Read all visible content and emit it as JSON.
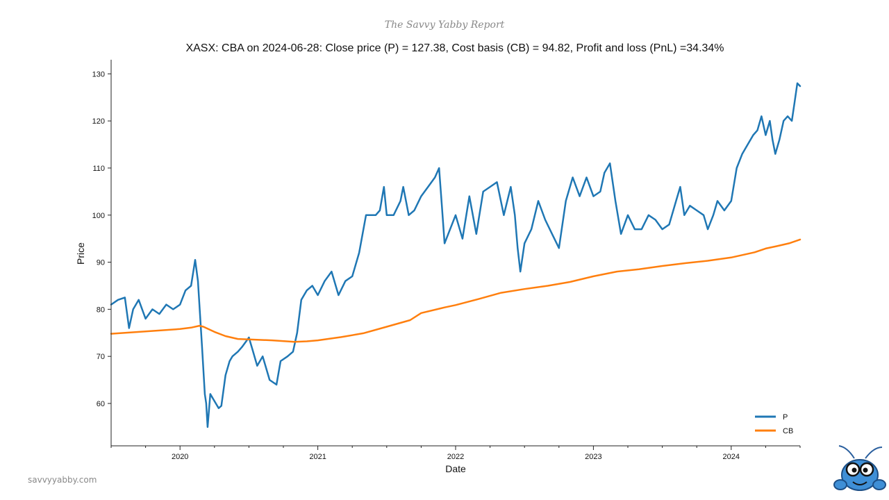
{
  "header": {
    "brand": "The Savvy Yabby Report"
  },
  "footer": {
    "website": "savvyyabby.com"
  },
  "colors": {
    "price": "#1f77b4",
    "cost_basis": "#ff7f0e",
    "mascot": "#3f8fd6"
  },
  "chart_data": {
    "type": "line",
    "title": "XASX: CBA on 2024-06-28: Close price (P) = 127.38, Cost basis (CB) = 94.82, Profit and loss (PnL) =34.34%",
    "xlabel": "Date",
    "ylabel": "Price",
    "xlim": [
      2019.5,
      2024.5
    ],
    "ylim": [
      51,
      133
    ],
    "x_ticks": [
      {
        "value": 2020,
        "label": "2020"
      },
      {
        "value": 2021,
        "label": "2021"
      },
      {
        "value": 2022,
        "label": "2022"
      },
      {
        "value": 2023,
        "label": "2023"
      },
      {
        "value": 2024,
        "label": "2024"
      }
    ],
    "y_ticks": [
      60,
      70,
      80,
      90,
      100,
      110,
      120,
      130
    ],
    "legend_position": "bottom-right",
    "series": [
      {
        "name": "P",
        "x": [
          2019.5,
          2019.55,
          2019.6,
          2019.63,
          2019.66,
          2019.7,
          2019.75,
          2019.8,
          2019.85,
          2019.9,
          2019.95,
          2020.0,
          2020.04,
          2020.08,
          2020.11,
          2020.13,
          2020.16,
          2020.18,
          2020.19,
          2020.2,
          2020.22,
          2020.24,
          2020.26,
          2020.28,
          2020.3,
          2020.33,
          2020.36,
          2020.38,
          2020.42,
          2020.45,
          2020.5,
          2020.53,
          2020.56,
          2020.6,
          2020.65,
          2020.7,
          2020.73,
          2020.78,
          2020.82,
          2020.85,
          2020.88,
          2020.92,
          2020.96,
          2021.0,
          2021.05,
          2021.1,
          2021.13,
          2021.15,
          2021.2,
          2021.25,
          2021.3,
          2021.35,
          2021.38,
          2021.42,
          2021.45,
          2021.48,
          2021.5,
          2021.55,
          2021.6,
          2021.62,
          2021.66,
          2021.7,
          2021.75,
          2021.8,
          2021.85,
          2021.88,
          2021.9,
          2021.92,
          2022.0,
          2022.05,
          2022.1,
          2022.15,
          2022.2,
          2022.25,
          2022.3,
          2022.35,
          2022.4,
          2022.43,
          2022.45,
          2022.47,
          2022.5,
          2022.55,
          2022.6,
          2022.65,
          2022.7,
          2022.75,
          2022.8,
          2022.85,
          2022.9,
          2022.95,
          2023.0,
          2023.05,
          2023.08,
          2023.12,
          2023.16,
          2023.2,
          2023.25,
          2023.3,
          2023.35,
          2023.4,
          2023.45,
          2023.5,
          2023.55,
          2023.6,
          2023.63,
          2023.66,
          2023.7,
          2023.75,
          2023.8,
          2023.83,
          2023.87,
          2023.9,
          2023.95,
          2024.0,
          2024.04,
          2024.08,
          2024.12,
          2024.16,
          2024.19,
          2024.22,
          2024.25,
          2024.28,
          2024.3,
          2024.32,
          2024.35,
          2024.38,
          2024.41,
          2024.44,
          2024.46,
          2024.48,
          2024.5
        ],
        "values": [
          81,
          82,
          82.5,
          76,
          80,
          82,
          78,
          80,
          79,
          81,
          80,
          81,
          84,
          85,
          90.5,
          86,
          72,
          62,
          60,
          55,
          62,
          61,
          60,
          59,
          59.5,
          66,
          69,
          70,
          71,
          72,
          74,
          71,
          68,
          70,
          65,
          64,
          69,
          70,
          71,
          75,
          82,
          84,
          85,
          83,
          86,
          88,
          85,
          83,
          86,
          87,
          92,
          100,
          100,
          100,
          101,
          106,
          100,
          100,
          103,
          106,
          100,
          101,
          104,
          106,
          108,
          110,
          102,
          94,
          100,
          95,
          104,
          96,
          105,
          106,
          107,
          100,
          106,
          100,
          93,
          88,
          94,
          97,
          103,
          99,
          96,
          93,
          103,
          108,
          104,
          108,
          104,
          105,
          109,
          111,
          103,
          96,
          100,
          97,
          97,
          100,
          99,
          97,
          98,
          103,
          106,
          100,
          102,
          101,
          100,
          97,
          100,
          103,
          101,
          103,
          110,
          113,
          115,
          117,
          118,
          121,
          117,
          120,
          116,
          113,
          116,
          120,
          121,
          120,
          124,
          128,
          127.4
        ]
      },
      {
        "name": "CB",
        "x": [
          2019.5,
          2019.75,
          2020.0,
          2020.08,
          2020.14,
          2020.17,
          2020.25,
          2020.33,
          2020.42,
          2020.5,
          2020.67,
          2020.83,
          2020.92,
          2021.0,
          2021.17,
          2021.33,
          2021.5,
          2021.67,
          2021.75,
          2021.92,
          2022.0,
          2022.17,
          2022.33,
          2022.5,
          2022.67,
          2022.83,
          2023.0,
          2023.17,
          2023.33,
          2023.5,
          2023.67,
          2023.83,
          2024.0,
          2024.17,
          2024.25,
          2024.33,
          2024.42,
          2024.5
        ],
        "values": [
          74.8,
          75.3,
          75.8,
          76.1,
          76.5,
          76.3,
          75.2,
          74.3,
          73.7,
          73.6,
          73.4,
          73.1,
          73.2,
          73.4,
          74.1,
          74.9,
          76.3,
          77.7,
          79.2,
          80.4,
          80.9,
          82.2,
          83.5,
          84.3,
          85.0,
          85.8,
          87.0,
          88.0,
          88.5,
          89.2,
          89.8,
          90.3,
          91.0,
          92.1,
          92.9,
          93.4,
          94.0,
          94.82
        ]
      }
    ]
  }
}
